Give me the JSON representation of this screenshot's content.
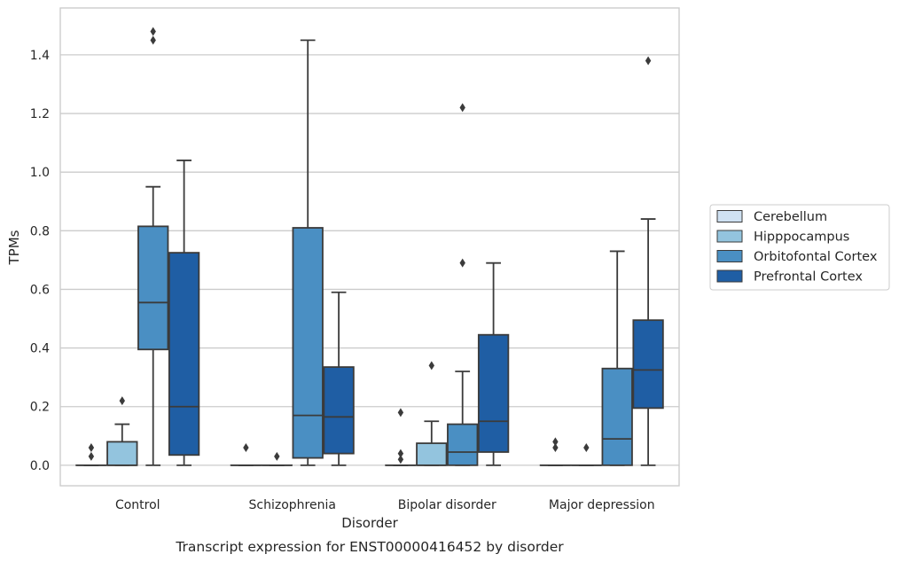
{
  "chart_data": {
    "type": "box",
    "xlabel": "Disorder",
    "ylabel": "TPMs",
    "caption": "Transcript expression for ENST00000416452 by disorder",
    "categories": [
      "Control",
      "Schizophrenia",
      "Bipolar disorder",
      "Major depression"
    ],
    "ylim": [
      -0.07,
      1.56
    ],
    "yticks": [
      "0.0",
      "0.2",
      "0.4",
      "0.6",
      "0.8",
      "1.0",
      "1.2",
      "1.4"
    ],
    "grid": true,
    "legend_position": "right",
    "series": [
      {
        "name": "Cerebellum",
        "color": "#cfe1f2",
        "boxes": [
          {
            "q1": 0,
            "median": 0,
            "q3": 0,
            "whisker_low": 0,
            "whisker_high": 0,
            "outliers": [
              0.03,
              0.06
            ]
          },
          {
            "q1": 0,
            "median": 0,
            "q3": 0,
            "whisker_low": 0,
            "whisker_high": 0,
            "outliers": [
              0.06
            ]
          },
          {
            "q1": 0,
            "median": 0,
            "q3": 0,
            "whisker_low": 0,
            "whisker_high": 0,
            "outliers": [
              0.02,
              0.04,
              0.18
            ]
          },
          {
            "q1": 0,
            "median": 0,
            "q3": 0,
            "whisker_low": 0,
            "whisker_high": 0,
            "outliers": [
              0.06,
              0.08
            ]
          }
        ]
      },
      {
        "name": "Hipppocampus",
        "color": "#93c4de",
        "boxes": [
          {
            "q1": 0,
            "median": 0,
            "q3": 0.08,
            "whisker_low": 0,
            "whisker_high": 0.14,
            "outliers": [
              0.22
            ]
          },
          {
            "q1": 0,
            "median": 0,
            "q3": 0,
            "whisker_low": 0,
            "whisker_high": 0,
            "outliers": [
              0.03
            ]
          },
          {
            "q1": 0,
            "median": 0,
            "q3": 0.075,
            "whisker_low": 0,
            "whisker_high": 0.15,
            "outliers": [
              0.34
            ]
          },
          {
            "q1": 0,
            "median": 0,
            "q3": 0,
            "whisker_low": 0,
            "whisker_high": 0,
            "outliers": [
              0.06
            ]
          }
        ]
      },
      {
        "name": "Orbitofontal Cortex",
        "color": "#4a8fc3",
        "boxes": [
          {
            "q1": 0.395,
            "median": 0.555,
            "q3": 0.815,
            "whisker_low": 0,
            "whisker_high": 0.95,
            "outliers": [
              1.45,
              1.48
            ]
          },
          {
            "q1": 0.025,
            "median": 0.17,
            "q3": 0.81,
            "whisker_low": 0,
            "whisker_high": 1.45,
            "outliers": []
          },
          {
            "q1": 0,
            "median": 0.045,
            "q3": 0.14,
            "whisker_low": 0,
            "whisker_high": 0.32,
            "outliers": [
              0.69,
              1.22
            ]
          },
          {
            "q1": 0,
            "median": 0.09,
            "q3": 0.33,
            "whisker_low": 0,
            "whisker_high": 0.73,
            "outliers": []
          }
        ]
      },
      {
        "name": "Prefrontal Cortex",
        "color": "#1f5ea4",
        "boxes": [
          {
            "q1": 0.035,
            "median": 0.2,
            "q3": 0.725,
            "whisker_low": 0,
            "whisker_high": 1.04,
            "outliers": []
          },
          {
            "q1": 0.04,
            "median": 0.165,
            "q3": 0.335,
            "whisker_low": 0,
            "whisker_high": 0.59,
            "outliers": []
          },
          {
            "q1": 0.045,
            "median": 0.15,
            "q3": 0.445,
            "whisker_low": 0,
            "whisker_high": 0.69,
            "outliers": []
          },
          {
            "q1": 0.195,
            "median": 0.325,
            "q3": 0.495,
            "whisker_low": 0,
            "whisker_high": 0.84,
            "outliers": [
              1.38
            ]
          }
        ]
      }
    ]
  }
}
